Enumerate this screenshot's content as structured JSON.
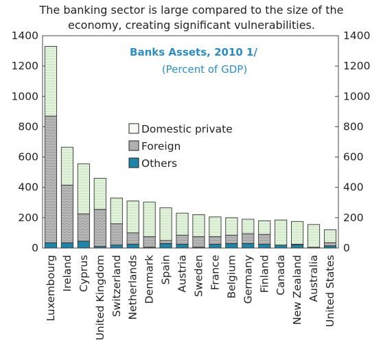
{
  "headline": {
    "line1": "The banking sector is large compared to the size of the",
    "line2": "economy, creating significant vulnerabilities."
  },
  "chart_data": {
    "type": "bar",
    "stacked": true,
    "title": "Banks Assets, 2010 1/",
    "subtitle": "(Percent of GDP)",
    "categories": [
      "Luxembourg",
      "Ireland",
      "Cyprus",
      "United Kingdom",
      "Switzerland",
      "Netherlands",
      "Denmark",
      "Spain",
      "Austria",
      "Sweden",
      "France",
      "Belgium",
      "Germany",
      "Finland",
      "Canada",
      "New Zealand",
      "Australia",
      "United States"
    ],
    "series": [
      {
        "name": "Others",
        "color": "#1f84a8",
        "values": [
          35,
          35,
          45,
          10,
          20,
          25,
          5,
          30,
          25,
          5,
          25,
          30,
          30,
          25,
          20,
          20,
          5,
          15
        ]
      },
      {
        "name": "Foreign",
        "color": "#b9b9b9",
        "values": [
          835,
          380,
          180,
          245,
          140,
          75,
          70,
          20,
          60,
          70,
          50,
          55,
          65,
          65,
          0,
          5,
          0,
          20
        ]
      },
      {
        "name": "Domestic private",
        "color": "#e3f4dc",
        "values": [
          460,
          250,
          330,
          205,
          170,
          210,
          228,
          215,
          145,
          145,
          130,
          115,
          95,
          90,
          165,
          150,
          150,
          85
        ]
      }
    ],
    "legend_order": [
      "Domestic private",
      "Foreign",
      "Others"
    ],
    "yticks": [
      0,
      200,
      400,
      600,
      800,
      1000,
      1200,
      1400
    ],
    "ylim": [
      0,
      1400
    ],
    "grid": false,
    "legend_position": "center"
  }
}
